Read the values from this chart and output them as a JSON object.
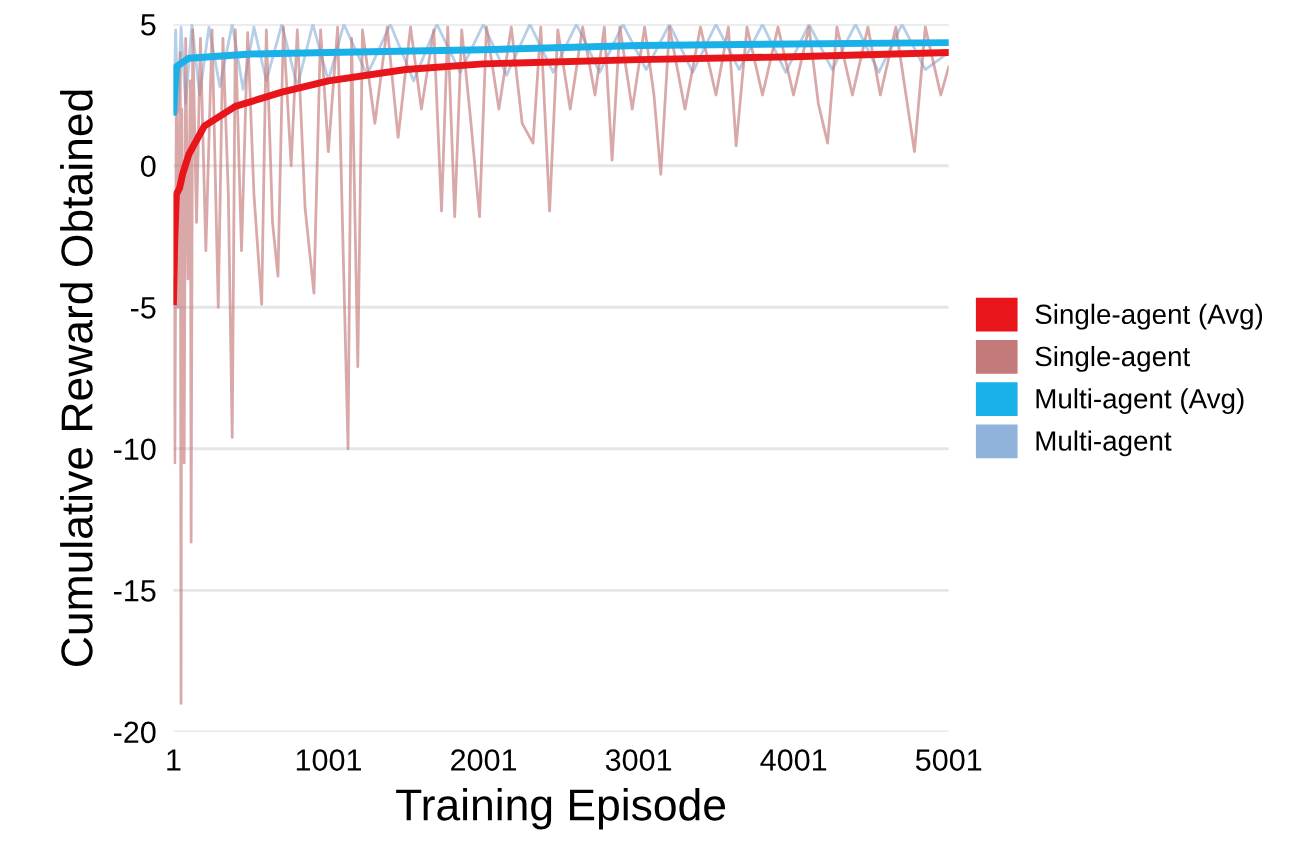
{
  "chart_data": {
    "type": "line",
    "xlabel": "Training Episode",
    "ylabel": "Cumulative Reward Obtained",
    "xlim": [
      1,
      5001
    ],
    "xticks": [
      1,
      1001,
      2001,
      3001,
      4001,
      5001
    ],
    "ylim": [
      -20,
      5
    ],
    "yticks": [
      -20,
      -15,
      -10,
      -5,
      0,
      5
    ],
    "grid": "y",
    "legend": "right",
    "line_style": "solid",
    "marker": "none",
    "series": [
      {
        "name": "Single-agent (Avg)",
        "color": "#e8151b",
        "x": [
          1,
          10,
          20,
          40,
          60,
          100,
          200,
          400,
          700,
          1000,
          1500,
          2000,
          3000,
          4000,
          5001
        ],
        "values": [
          -4.8,
          -2.5,
          -1.0,
          -0.8,
          -0.3,
          0.4,
          1.4,
          2.1,
          2.6,
          3.0,
          3.4,
          3.6,
          3.75,
          3.85,
          4.0
        ]
      },
      {
        "name": "Single-agent",
        "color": "#c47a7a",
        "x": [
          1,
          10,
          20,
          30,
          45,
          50,
          55,
          70,
          80,
          95,
          110,
          115,
          125,
          150,
          175,
          210,
          250,
          290,
          320,
          355,
          380,
          400,
          440,
          480,
          520,
          570,
          600,
          640,
          675,
          710,
          760,
          800,
          850,
          907,
          950,
          1000,
          1060,
          1127,
          1150,
          1190,
          1220,
          1300,
          1380,
          1450,
          1530,
          1600,
          1680,
          1730,
          1770,
          1815,
          1860,
          1920,
          1975,
          2020,
          2100,
          2180,
          2250,
          2320,
          2370,
          2427,
          2480,
          2560,
          2640,
          2720,
          2780,
          2830,
          2880,
          2960,
          3040,
          3100,
          3144,
          3200,
          3300,
          3400,
          3500,
          3580,
          3630,
          3700,
          3800,
          3900,
          4000,
          4100,
          4160,
          4220,
          4280,
          4380,
          4480,
          4560,
          4660,
          4780,
          4850,
          4950,
          5001
        ],
        "values": [
          -4,
          -10.5,
          3,
          -5,
          4,
          -19,
          2,
          -10.5,
          4.5,
          -4,
          3,
          -13.3,
          4.8,
          -2,
          4.5,
          -3,
          4.8,
          -5,
          4.5,
          -1,
          -9.6,
          4.8,
          -3,
          4.7,
          -1,
          -4.9,
          4.8,
          -2,
          -3.9,
          4.9,
          0,
          4.8,
          -1.5,
          -4.5,
          4.8,
          0.5,
          4.9,
          -10,
          4.5,
          -7.1,
          4.8,
          1.5,
          4.9,
          1,
          4.9,
          2,
          4.8,
          -1.6,
          4.9,
          -1.8,
          4.8,
          1.5,
          -1.8,
          4.9,
          2,
          4.9,
          1.5,
          0.8,
          4.9,
          -1.6,
          4.8,
          2,
          4.9,
          2.5,
          4.9,
          0.2,
          4.9,
          2,
          4.9,
          2.5,
          -0.3,
          4.9,
          2,
          4.9,
          2.5,
          4.9,
          0.7,
          4.9,
          2.5,
          4.9,
          2.5,
          4.9,
          2.2,
          0.8,
          4.9,
          2.5,
          4.9,
          2.5,
          4.9,
          0.5,
          4.9,
          2.5,
          3.5
        ]
      },
      {
        "name": "Multi-agent (Avg)",
        "color": "#1ab0e8",
        "x": [
          1,
          20,
          100,
          500,
          1000,
          2000,
          3000,
          5001
        ],
        "values": [
          1.9,
          3.5,
          3.8,
          3.95,
          4.0,
          4.1,
          4.25,
          4.35
        ]
      },
      {
        "name": "Multi-agent",
        "color": "#8fb3da",
        "x": [
          1,
          15,
          30,
          50,
          80,
          120,
          170,
          230,
          300,
          380,
          450,
          520,
          600,
          700,
          800,
          900,
          1000,
          1100,
          1250,
          1400,
          1550,
          1700,
          1850,
          2000,
          2150,
          2300,
          2450,
          2600,
          2750,
          2900,
          3050,
          3200,
          3350,
          3500,
          3650,
          3800,
          3950,
          4100,
          4250,
          4400,
          4550,
          4700,
          4850,
          5001
        ],
        "values": [
          2,
          4.8,
          1.9,
          4.9,
          2.2,
          5,
          2.5,
          4.9,
          2.8,
          5,
          2.7,
          4.9,
          3,
          5,
          2.8,
          5,
          3,
          5,
          3.2,
          5,
          3,
          5,
          3.3,
          5,
          3.2,
          5,
          3.3,
          5,
          3.3,
          5,
          3.4,
          5,
          3.3,
          5,
          3.4,
          5,
          3.3,
          5,
          3.4,
          5,
          3.3,
          5,
          3.4,
          4
        ]
      }
    ]
  }
}
